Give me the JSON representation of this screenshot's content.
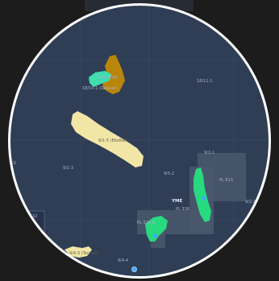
{
  "map": {
    "colors": {
      "water": "#2f3e55",
      "grid": "#3d4d66",
      "licence": "#4a586d",
      "oil_field": "#b8860b",
      "gas_field": "#3fdcb0",
      "field_green": "#27d97f",
      "discovery": "#f2e6a6",
      "well_blue": "#3fa8ff",
      "frame": "#ffffff"
    },
    "labels": {
      "block_18_11": "18/11-1",
      "block_9_2_1": "9/2-1",
      "block_9_2_2": "9/2-2",
      "block_9_1_3": "9/1-3",
      "block_9_5_2": "9/5-2",
      "block_9_4": "9/4-4",
      "block_9_3": "9/3-1",
      "block_9_2_left": "9/2",
      "yme": "YME",
      "pl_316": "PL 316",
      "pl_613": "PL 613",
      "pl_lower": "PL 316 B",
      "field_upper": "Skarv/Egg",
      "field_upper_2": "18/10-1 (Oselvar)",
      "discovery_label": "9/1-5 (Ekofisk)",
      "left_edge": "9/2",
      "left_32": "32",
      "bottom_left": "9/4-3 (Torvald)"
    },
    "icons": [
      "well-marker-icon",
      "zoom-pin-icon"
    ]
  }
}
